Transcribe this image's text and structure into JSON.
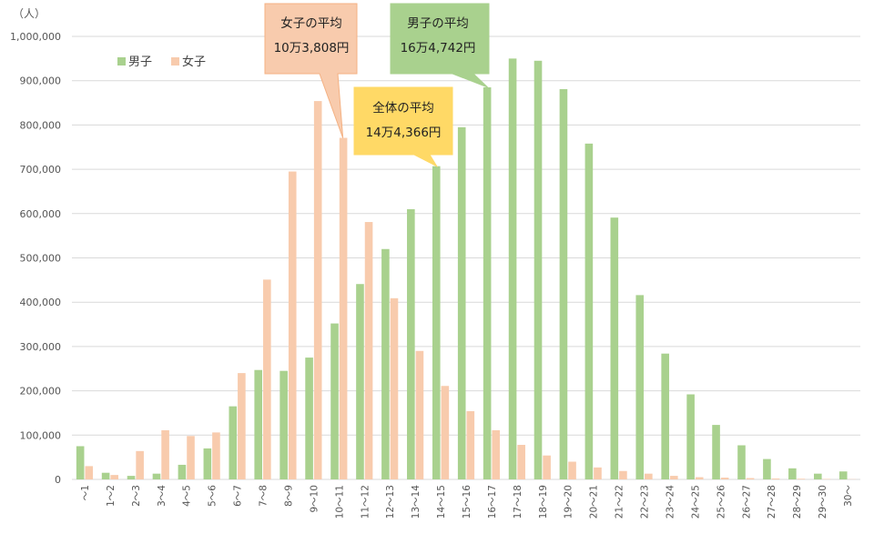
{
  "chart_data": {
    "type": "bar",
    "unit_label": "（人）",
    "ylim": [
      0,
      1000000
    ],
    "yticks": [
      "0",
      "100,000",
      "200,000",
      "300,000",
      "400,000",
      "500,000",
      "600,000",
      "700,000",
      "800,000",
      "900,000",
      "1,000,000"
    ],
    "ytick_values": [
      0,
      100000,
      200000,
      300000,
      400000,
      500000,
      600000,
      700000,
      800000,
      900000,
      1000000
    ],
    "grid": true,
    "legend_position": "top-left",
    "categories": [
      "～1",
      "1～2",
      "2～3",
      "3～4",
      "4～5",
      "5～6",
      "6～7",
      "7～8",
      "8～9",
      "9～10",
      "10～11",
      "11～12",
      "12～13",
      "13～14",
      "14～15",
      "15～16",
      "16～17",
      "17～18",
      "18～19",
      "19～20",
      "20～21",
      "21～22",
      "22～23",
      "23～24",
      "24～25",
      "25～26",
      "26～27",
      "27～28",
      "28～29",
      "29～30",
      "30～"
    ],
    "series": [
      {
        "name": "男子",
        "color": "#a9d18e",
        "values": [
          75000,
          15000,
          8000,
          13000,
          33000,
          70000,
          165000,
          247000,
          245000,
          275000,
          352000,
          441000,
          520000,
          610000,
          707000,
          795000,
          885000,
          950000,
          945000,
          881000,
          758000,
          591000,
          416000,
          284000,
          192000,
          123000,
          77000,
          46000,
          25000,
          13000,
          18000
        ]
      },
      {
        "name": "女子",
        "color": "#f8cbad",
        "values": [
          30000,
          10000,
          64000,
          111000,
          98000,
          106000,
          240000,
          451000,
          695000,
          854000,
          771000,
          581000,
          409000,
          290000,
          211000,
          154000,
          111000,
          78000,
          54000,
          40000,
          27000,
          19000,
          13000,
          8000,
          5000,
          4000,
          3000,
          2000,
          1500,
          1000,
          500
        ]
      }
    ],
    "annotations": [
      {
        "id": "female",
        "line1": "女子の平均",
        "line2": "10万3,808円",
        "color": "#f8cbad",
        "border": "#f4b183",
        "category": "10～11",
        "value": 771000
      },
      {
        "id": "male",
        "line1": "男子の平均",
        "line2": "16万4,742円",
        "color": "#a9d18e",
        "border": "#a9d18e",
        "category": "16～17",
        "value": 885000
      },
      {
        "id": "total",
        "line1": "全体の平均",
        "line2": "14万4,366円",
        "color": "#ffd966",
        "border": "#ffd966",
        "category": "14～15",
        "value": 707000
      }
    ]
  }
}
